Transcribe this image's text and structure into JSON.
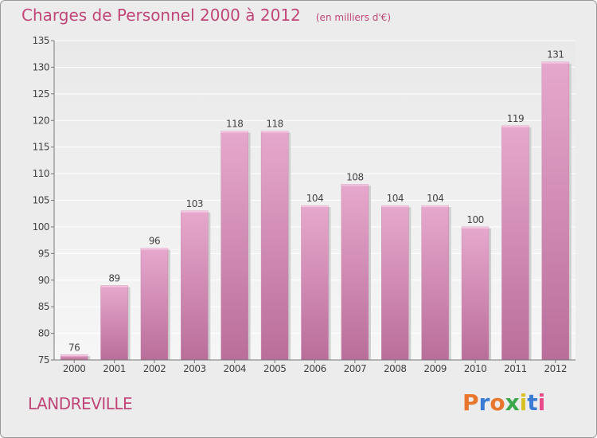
{
  "header": {
    "title": "Charges de Personnel 2000 à 2012",
    "subtitle": "(en milliers d'€)"
  },
  "footer": {
    "town": "LANDREVILLE",
    "logo": "Proxiti",
    "logo_colors": [
      "#e8762c",
      "#3a7bd5",
      "#e8762c",
      "#3aa84a",
      "#d8c020",
      "#3a7bd5",
      "#e84a8a"
    ]
  },
  "colors": {
    "bar_light": "#e7a8cd",
    "bar_dark": "#b96e9a",
    "text_accent": "#c0467a"
  },
  "chart_data": {
    "type": "bar",
    "title": "Charges de Personnel 2000 à 2012",
    "subtitle": "(en milliers d'€)",
    "categories": [
      "2000",
      "2001",
      "2002",
      "2003",
      "2004",
      "2005",
      "2006",
      "2007",
      "2008",
      "2009",
      "2010",
      "2011",
      "2012"
    ],
    "values": [
      76,
      89,
      96,
      103,
      118,
      118,
      104,
      108,
      104,
      104,
      100,
      119,
      131
    ],
    "ylim": [
      75,
      135
    ],
    "yticks": [
      75,
      80,
      85,
      90,
      95,
      100,
      105,
      110,
      115,
      120,
      125,
      130,
      135
    ],
    "grid": true,
    "data_labels": true
  }
}
